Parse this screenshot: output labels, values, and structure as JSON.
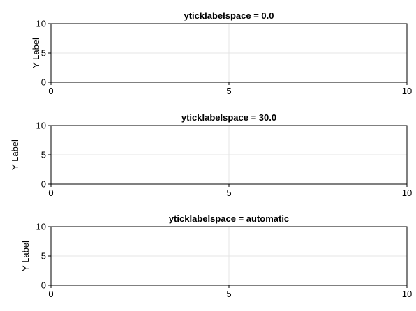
{
  "chart_data": [
    {
      "type": "line",
      "title": "yticklabelspace = 0.0",
      "xlabel": "",
      "ylabel": "Y Label",
      "xlim": [
        0,
        10
      ],
      "ylim": [
        0,
        10
      ],
      "xticks": [
        0,
        5,
        10
      ],
      "yticks": [
        0,
        5,
        10
      ],
      "grid": true,
      "series": []
    },
    {
      "type": "line",
      "title": "yticklabelspace = 30.0",
      "xlabel": "",
      "ylabel": "Y Label",
      "xlim": [
        0,
        10
      ],
      "ylim": [
        0,
        10
      ],
      "xticks": [
        0,
        5,
        10
      ],
      "yticks": [
        0,
        5,
        10
      ],
      "grid": true,
      "series": []
    },
    {
      "type": "line",
      "title": "yticklabelspace = automatic",
      "xlabel": "",
      "ylabel": "Y Label",
      "xlim": [
        0,
        10
      ],
      "ylim": [
        0,
        10
      ],
      "xticks": [
        0,
        5,
        10
      ],
      "yticks": [
        0,
        5,
        10
      ],
      "grid": true,
      "series": []
    }
  ]
}
